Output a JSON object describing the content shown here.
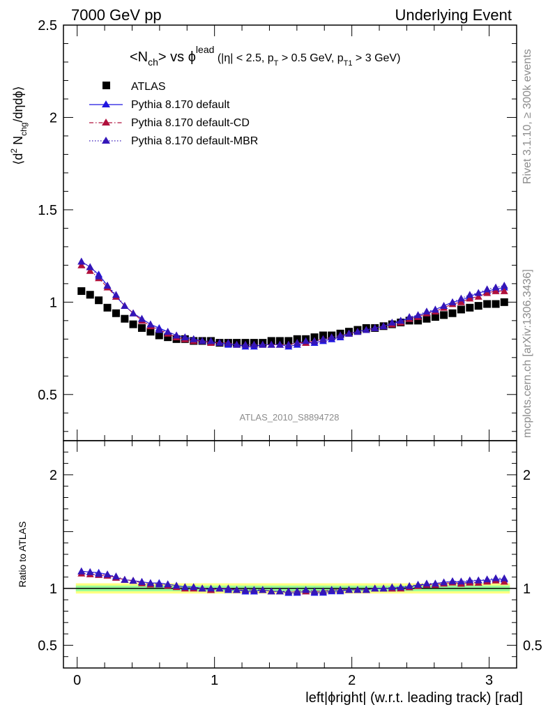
{
  "header": {
    "left": "7000 GeV pp",
    "right": "Underlying Event"
  },
  "main_title": {
    "n": "<N",
    "n_sub": "ch",
    "vs": "> vs ",
    "phi": "ϕ",
    "phi_sup": "lead",
    "cuts": " (|η| < 2.5, p",
    "pt_sub": "T",
    "cuts2": " > 0.5 GeV, p",
    "pt1_sub": "T1",
    "cuts3": " > 3 GeV)"
  },
  "side_labels": {
    "rivet": "Rivet 3.1.10, ≥ 300k events",
    "mcplots": "mcplots.cern.ch [arXiv:1306.3436]"
  },
  "watermark": "ATLAS_2010_S8894728",
  "y_label_top": {
    "a": "⟨d",
    "sup": "2",
    "b": " N",
    "sub": "chg",
    "c": "/dηdϕ⟩"
  },
  "y_label_bottom": "Ratio to ATLAS",
  "x_label": "left|ϕright| (w.r.t. leading track) [rad]",
  "colors": {
    "atlas": "#000000",
    "default": "#1f16e0",
    "cd": "#b0103c",
    "mbr": "#3416b8",
    "band_inner": "#99ff99",
    "band_outer": "#ffff80"
  },
  "chart_data": [
    {
      "type": "scatter",
      "panel": "main",
      "xlim": [
        -0.1,
        3.2
      ],
      "ylim": [
        0.25,
        2.5
      ],
      "yticks": [
        "0.5",
        "1",
        "1.5",
        "2",
        "2.5"
      ],
      "x": [
        0.031,
        0.094,
        0.157,
        0.22,
        0.283,
        0.346,
        0.408,
        0.471,
        0.534,
        0.597,
        0.66,
        0.723,
        0.785,
        0.848,
        0.911,
        0.974,
        1.037,
        1.1,
        1.162,
        1.225,
        1.288,
        1.351,
        1.414,
        1.476,
        1.539,
        1.602,
        1.665,
        1.728,
        1.791,
        1.853,
        1.916,
        1.979,
        2.042,
        2.105,
        2.168,
        2.231,
        2.293,
        2.356,
        2.419,
        2.482,
        2.545,
        2.608,
        2.67,
        2.733,
        2.796,
        2.859,
        2.922,
        2.985,
        3.048,
        3.11
      ],
      "series": [
        {
          "name": "ATLAS",
          "marker": "square",
          "values": [
            1.06,
            1.04,
            1.01,
            0.97,
            0.94,
            0.91,
            0.88,
            0.86,
            0.84,
            0.82,
            0.81,
            0.8,
            0.8,
            0.79,
            0.79,
            0.79,
            0.78,
            0.78,
            0.78,
            0.78,
            0.78,
            0.78,
            0.79,
            0.79,
            0.79,
            0.8,
            0.8,
            0.81,
            0.82,
            0.82,
            0.83,
            0.84,
            0.85,
            0.86,
            0.86,
            0.87,
            0.88,
            0.89,
            0.9,
            0.9,
            0.91,
            0.92,
            0.93,
            0.94,
            0.96,
            0.97,
            0.98,
            0.99,
            0.99,
            1.0
          ]
        },
        {
          "name": "Pythia 8.170 default",
          "marker": "triangle",
          "line": "solid",
          "values": [
            1.22,
            1.19,
            1.15,
            1.09,
            1.03,
            0.98,
            0.94,
            0.91,
            0.88,
            0.86,
            0.84,
            0.82,
            0.81,
            0.8,
            0.79,
            0.78,
            0.78,
            0.77,
            0.77,
            0.76,
            0.76,
            0.77,
            0.77,
            0.77,
            0.76,
            0.77,
            0.78,
            0.78,
            0.79,
            0.8,
            0.81,
            0.83,
            0.84,
            0.85,
            0.86,
            0.87,
            0.88,
            0.9,
            0.91,
            0.93,
            0.94,
            0.96,
            0.98,
            1.0,
            1.01,
            1.03,
            1.05,
            1.06,
            1.07,
            1.08
          ]
        },
        {
          "name": "Pythia 8.170 default-CD",
          "marker": "triangle",
          "line": "dashdot",
          "values": [
            1.2,
            1.17,
            1.13,
            1.08,
            1.03,
            0.98,
            0.94,
            0.9,
            0.87,
            0.85,
            0.83,
            0.81,
            0.8,
            0.79,
            0.79,
            0.78,
            0.78,
            0.78,
            0.77,
            0.77,
            0.77,
            0.77,
            0.77,
            0.77,
            0.77,
            0.78,
            0.78,
            0.79,
            0.8,
            0.81,
            0.82,
            0.83,
            0.84,
            0.85,
            0.86,
            0.87,
            0.88,
            0.89,
            0.91,
            0.92,
            0.94,
            0.95,
            0.97,
            0.99,
            1.0,
            1.02,
            1.03,
            1.05,
            1.06,
            1.06
          ]
        },
        {
          "name": "Pythia 8.170 default-MBR",
          "marker": "triangle",
          "line": "dotted",
          "values": [
            1.22,
            1.19,
            1.14,
            1.09,
            1.04,
            0.98,
            0.94,
            0.91,
            0.88,
            0.85,
            0.84,
            0.82,
            0.81,
            0.8,
            0.79,
            0.79,
            0.78,
            0.78,
            0.77,
            0.77,
            0.77,
            0.77,
            0.77,
            0.77,
            0.77,
            0.78,
            0.79,
            0.79,
            0.8,
            0.81,
            0.82,
            0.83,
            0.84,
            0.85,
            0.86,
            0.87,
            0.89,
            0.9,
            0.92,
            0.93,
            0.95,
            0.96,
            0.98,
            1.0,
            1.02,
            1.04,
            1.05,
            1.07,
            1.08,
            1.09
          ]
        }
      ]
    },
    {
      "type": "scatter",
      "panel": "ratio",
      "xlim": [
        -0.1,
        3.2
      ],
      "ylim": [
        0.3,
        2.3
      ],
      "yticks": [
        "0.5",
        "1",
        "2"
      ],
      "xticks": [
        "0",
        "1",
        "2",
        "3"
      ],
      "band_inner": [
        0.975,
        1.025
      ],
      "band_outer": [
        0.955,
        1.045
      ],
      "series_from_ratio": true
    }
  ]
}
